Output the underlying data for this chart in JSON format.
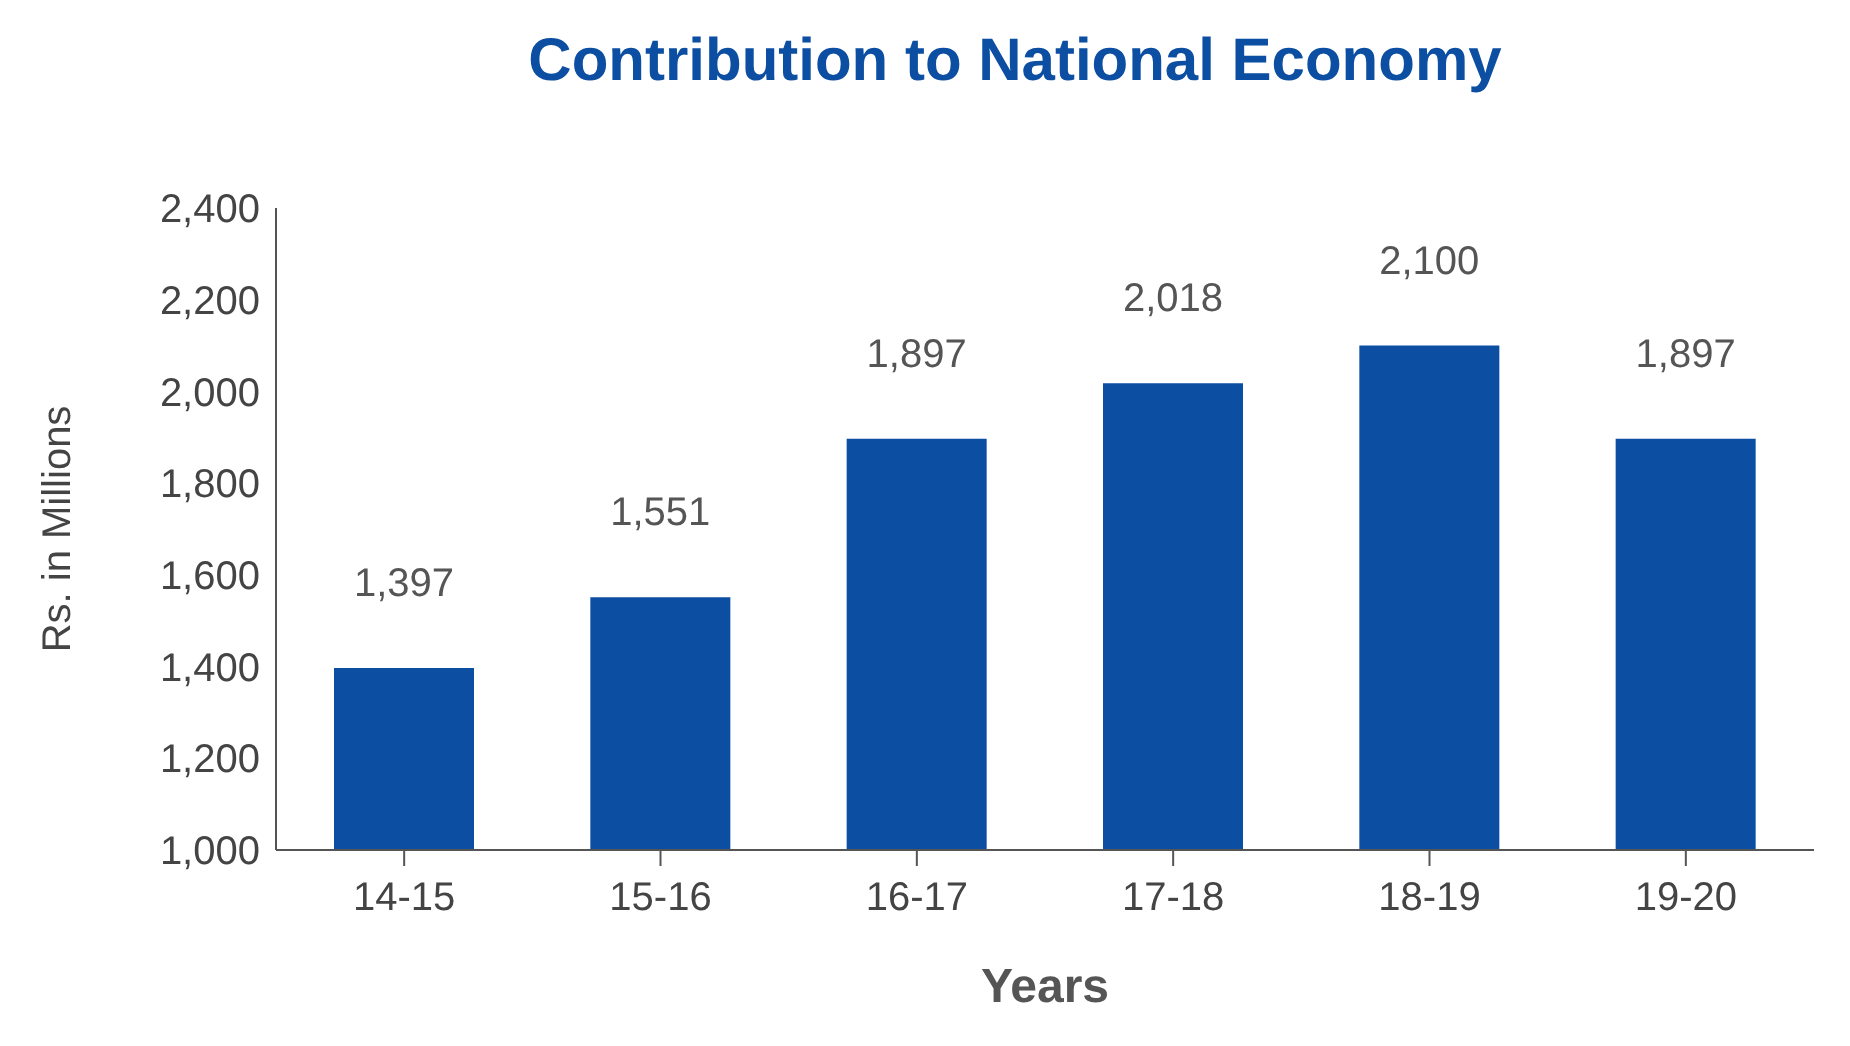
{
  "chart_data": {
    "type": "bar",
    "title": "Contribution to National Economy",
    "xlabel": "Years",
    "ylabel": "Rs. in Millions",
    "categories": [
      "14-15",
      "15-16",
      "16-17",
      "17-18",
      "18-19",
      "19-20"
    ],
    "values": [
      1397,
      1551,
      1897,
      2018,
      2100,
      1897
    ],
    "value_labels": [
      "1,397",
      "1,551",
      "1,897",
      "2,018",
      "2,100",
      "1,897"
    ],
    "color": "#0b4ea2",
    "ylim": [
      1000,
      2400
    ],
    "yticks": [
      {
        "value": 1000,
        "label": "1,000"
      },
      {
        "value": 1200,
        "label": "1,200"
      },
      {
        "value": 1400,
        "label": "1,400"
      },
      {
        "value": 1600,
        "label": "1,600"
      },
      {
        "value": 1800,
        "label": "1,800"
      },
      {
        "value": 2000,
        "label": "2,000"
      },
      {
        "value": 2200,
        "label": "2,200"
      },
      {
        "value": 2400,
        "label": "2,400"
      }
    ],
    "grid": false,
    "legend": false
  }
}
